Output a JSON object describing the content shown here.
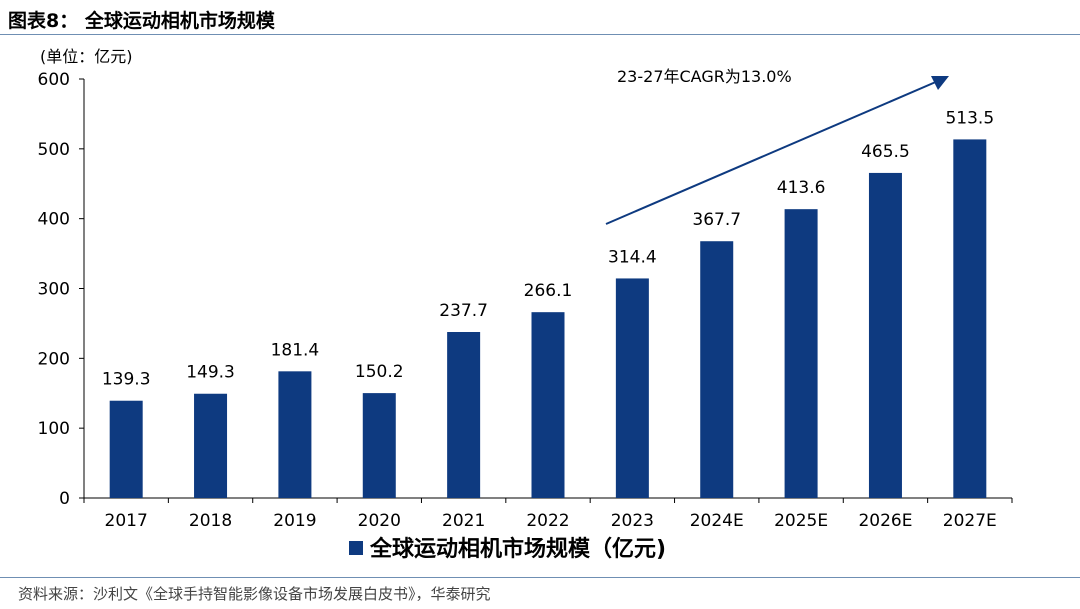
{
  "header": {
    "figure_title": "图表8：  全球运动相机市场规模"
  },
  "footer": {
    "source": "资料来源：沙利文《全球手持智能影像设备市场发展白皮书》，华泰研究"
  },
  "colors": {
    "bar": "#0e3a80",
    "rule": "#6f8fb3",
    "arrow": "#0e3a80"
  },
  "chart_data": {
    "type": "bar",
    "unit_label": "(单位：亿元)",
    "categories": [
      "2017",
      "2018",
      "2019",
      "2020",
      "2021",
      "2022",
      "2023",
      "2024E",
      "2025E",
      "2026E",
      "2027E"
    ],
    "values": [
      139.3,
      149.3,
      181.4,
      150.2,
      237.7,
      266.1,
      314.4,
      367.7,
      413.6,
      465.5,
      513.5
    ],
    "data_labels": [
      "139.3",
      "149.3",
      "181.4",
      "150.2",
      "237.7",
      "266.1",
      "314.4",
      "367.7",
      "413.6",
      "465.5",
      "513.5"
    ],
    "y_ticks": [
      "0",
      "100",
      "200",
      "300",
      "400",
      "500",
      "600"
    ],
    "ylim": [
      0,
      600
    ],
    "series": [
      {
        "name": "全球运动相机市场规模（亿元)",
        "values": [
          139.3,
          149.3,
          181.4,
          150.2,
          237.7,
          266.1,
          314.4,
          367.7,
          413.6,
          465.5,
          513.5
        ]
      }
    ],
    "legend_position": "bottom",
    "annotation": "23-27年CAGR为13.0%",
    "grid": false
  }
}
